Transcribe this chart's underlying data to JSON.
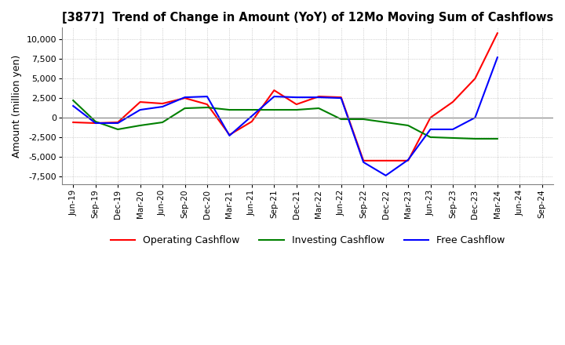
{
  "title": "[3877]  Trend of Change in Amount (YoY) of 12Mo Moving Sum of Cashflows",
  "ylabel": "Amount (million yen)",
  "x_labels": [
    "Jun-19",
    "Sep-19",
    "Dec-19",
    "Mar-20",
    "Jun-20",
    "Sep-20",
    "Dec-20",
    "Mar-21",
    "Jun-21",
    "Sep-21",
    "Dec-21",
    "Mar-22",
    "Jun-22",
    "Sep-22",
    "Dec-22",
    "Mar-23",
    "Jun-23",
    "Sep-23",
    "Dec-23",
    "Mar-24",
    "Jun-24",
    "Sep-24"
  ],
  "operating": [
    -600,
    -700,
    -600,
    2000,
    1800,
    2500,
    1700,
    -2200,
    -500,
    3500,
    1700,
    2700,
    2600,
    -5500,
    -5500,
    -5500,
    0,
    2000,
    5000,
    10800,
    null,
    null
  ],
  "investing": [
    2200,
    -500,
    -1500,
    -1000,
    -600,
    1200,
    1300,
    1000,
    1000,
    1000,
    1000,
    1200,
    -200,
    -200,
    -600,
    -1000,
    -2500,
    -2600,
    -2700,
    -2700,
    null,
    null
  ],
  "free": [
    1500,
    -700,
    -700,
    1000,
    1400,
    2600,
    2700,
    -2300,
    200,
    2700,
    2600,
    2600,
    2500,
    -5700,
    -7400,
    -5400,
    -1500,
    -1500,
    0,
    7700,
    null,
    null
  ],
  "operating_color": "#ff0000",
  "investing_color": "#008000",
  "free_color": "#0000ff",
  "ylim": [
    -8500,
    11500
  ],
  "yticks": [
    -7500,
    -5000,
    -2500,
    0,
    2500,
    5000,
    7500,
    10000
  ],
  "grid_color": "#b0b0b0",
  "grid_style": "dotted",
  "background_color": "#ffffff",
  "zero_line_color": "#808080"
}
